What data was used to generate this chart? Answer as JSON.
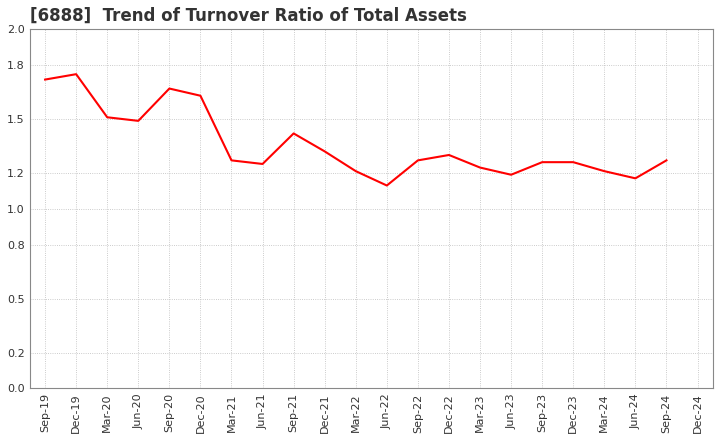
{
  "title": "[6888]  Trend of Turnover Ratio of Total Assets",
  "x_labels": [
    "Sep-19",
    "Dec-19",
    "Mar-20",
    "Jun-20",
    "Sep-20",
    "Dec-20",
    "Mar-21",
    "Jun-21",
    "Sep-21",
    "Dec-21",
    "Mar-22",
    "Jun-22",
    "Sep-22",
    "Dec-22",
    "Mar-23",
    "Jun-23",
    "Sep-23",
    "Dec-23",
    "Mar-24",
    "Jun-24",
    "Sep-24",
    "Dec-24"
  ],
  "y_values": [
    1.72,
    1.75,
    1.51,
    1.49,
    1.67,
    1.63,
    1.27,
    1.25,
    1.42,
    1.32,
    1.21,
    1.13,
    1.27,
    1.3,
    1.23,
    1.19,
    1.26,
    1.26,
    1.21,
    1.17,
    1.27,
    null
  ],
  "ylim": [
    0.0,
    2.0
  ],
  "yticks": [
    0.0,
    0.2,
    0.5,
    0.8,
    1.0,
    1.2,
    1.5,
    1.8,
    2.0
  ],
  "line_color": "#ff0000",
  "line_width": 1.5,
  "background_color": "#ffffff",
  "grid_color": "#bbbbbb",
  "title_fontsize": 12,
  "tick_fontsize": 8,
  "title_color": "#333333"
}
